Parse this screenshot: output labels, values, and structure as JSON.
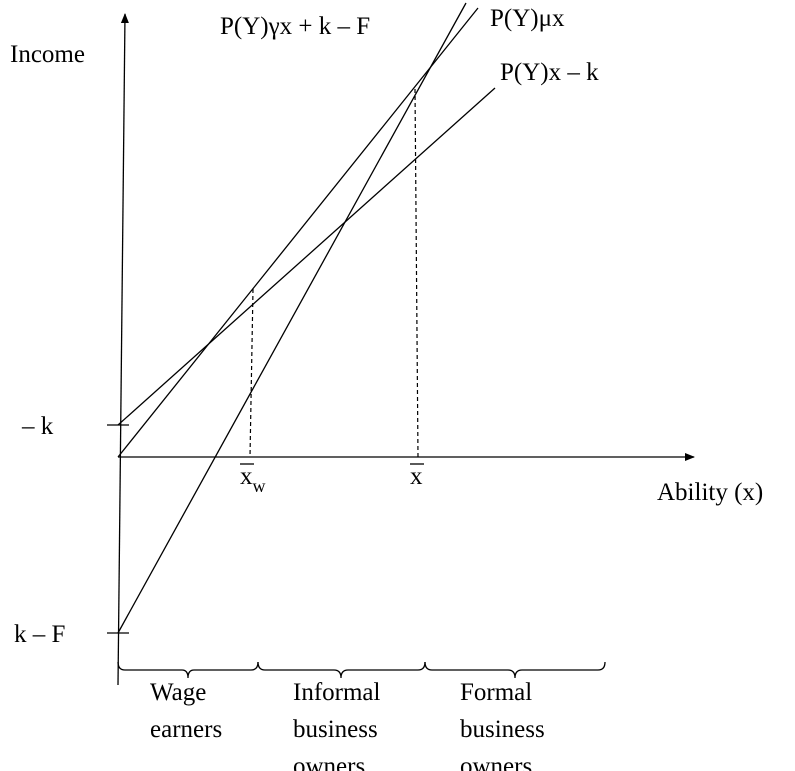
{
  "axes": {
    "y_label": "Income",
    "x_label": "Ability (x)"
  },
  "intercepts": {
    "upper": "– k",
    "lower": "k – F"
  },
  "lines": {
    "gamma": "P(Y)γx + k  – F",
    "mu": "P(Y)μx",
    "plain": "P(Y)x – k"
  },
  "thresholds": {
    "wage": {
      "base": "x",
      "subscript": "w"
    },
    "formal": {
      "base": "x"
    }
  },
  "regions": [
    {
      "lines": [
        "Wage",
        "earners"
      ]
    },
    {
      "lines": [
        "Informal",
        "business",
        "owners"
      ]
    },
    {
      "lines": [
        "Formal",
        "business",
        "owners"
      ]
    }
  ]
}
